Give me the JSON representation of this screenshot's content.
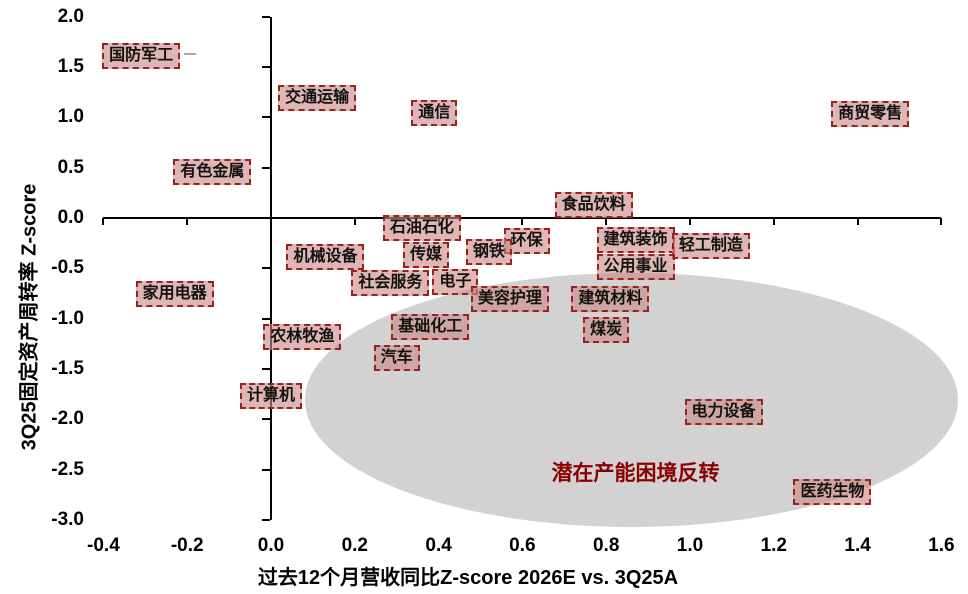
{
  "chart_data": {
    "type": "scatter",
    "title": "",
    "xlabel": "过去12个月营收同比Z-score 2026E vs. 3Q25A",
    "ylabel": "3Q25固定资产周转率 Z-score",
    "xlim": [
      -0.4,
      1.6
    ],
    "ylim": [
      -3.0,
      2.0
    ],
    "grid": false,
    "legend": false,
    "x_ticks": [
      "-0.4",
      "-0.2",
      "0.0",
      "0.2",
      "0.4",
      "0.6",
      "0.8",
      "1.0",
      "1.2",
      "1.4",
      "1.6"
    ],
    "y_ticks": [
      "2.0",
      "1.5",
      "1.0",
      "0.5",
      "0.0",
      "-0.5",
      "-1.0",
      "-1.5",
      "-2.0",
      "-2.5",
      "-3.0"
    ],
    "points": [
      {
        "label": "国防军工",
        "x": -0.31,
        "y": 1.61
      },
      {
        "label": "交通运输",
        "x": 0.11,
        "y": 1.19
      },
      {
        "label": "通信",
        "x": 0.39,
        "y": 1.04
      },
      {
        "label": "商贸零售",
        "x": 1.43,
        "y": 1.03
      },
      {
        "label": "有色金属",
        "x": -0.14,
        "y": 0.46
      },
      {
        "label": "食品饮料",
        "x": 0.77,
        "y": 0.13
      },
      {
        "label": "石油石化",
        "x": 0.36,
        "y": -0.1
      },
      {
        "label": "建筑装饰",
        "x": 0.87,
        "y": -0.22
      },
      {
        "label": "环保",
        "x": 0.61,
        "y": -0.23
      },
      {
        "label": "轻工制造",
        "x": 1.05,
        "y": -0.28
      },
      {
        "label": "钢铁",
        "x": 0.52,
        "y": -0.34
      },
      {
        "label": "传媒",
        "x": 0.37,
        "y": -0.37
      },
      {
        "label": "机械设备",
        "x": 0.13,
        "y": -0.39
      },
      {
        "label": "公用事业",
        "x": 0.87,
        "y": -0.49
      },
      {
        "label": "电子",
        "x": 0.44,
        "y": -0.64
      },
      {
        "label": "社会服务",
        "x": 0.285,
        "y": -0.65
      },
      {
        "label": "家用电器",
        "x": -0.23,
        "y": -0.76
      },
      {
        "label": "美容护理",
        "x": 0.57,
        "y": -0.81
      },
      {
        "label": "建筑材料",
        "x": 0.81,
        "y": -0.81
      },
      {
        "label": "基础化工",
        "x": 0.38,
        "y": -1.08
      },
      {
        "label": "煤炭",
        "x": 0.8,
        "y": -1.11
      },
      {
        "label": "农林牧渔",
        "x": 0.075,
        "y": -1.18
      },
      {
        "label": "汽车",
        "x": 0.3,
        "y": -1.39
      },
      {
        "label": "计算机",
        "x": 0.0,
        "y": -1.77
      },
      {
        "label": "电力设备",
        "x": 1.08,
        "y": -1.93
      },
      {
        "label": "医药生物",
        "x": 1.34,
        "y": -2.72
      }
    ],
    "annotation": {
      "text": "潜在产能困境反转",
      "x": 0.87,
      "y": -2.52
    },
    "ellipse": {
      "cx": 0.86,
      "cy": -1.81,
      "rx": 0.78,
      "ry": 1.26
    }
  },
  "colors": {
    "axis": "#000000",
    "label_fill": "rgba(203,140,135,0.63)",
    "label_border": "#962222",
    "label_text": "#111111",
    "ellipse_fill": "#d2d2d2",
    "annotation": "#8B0000"
  }
}
